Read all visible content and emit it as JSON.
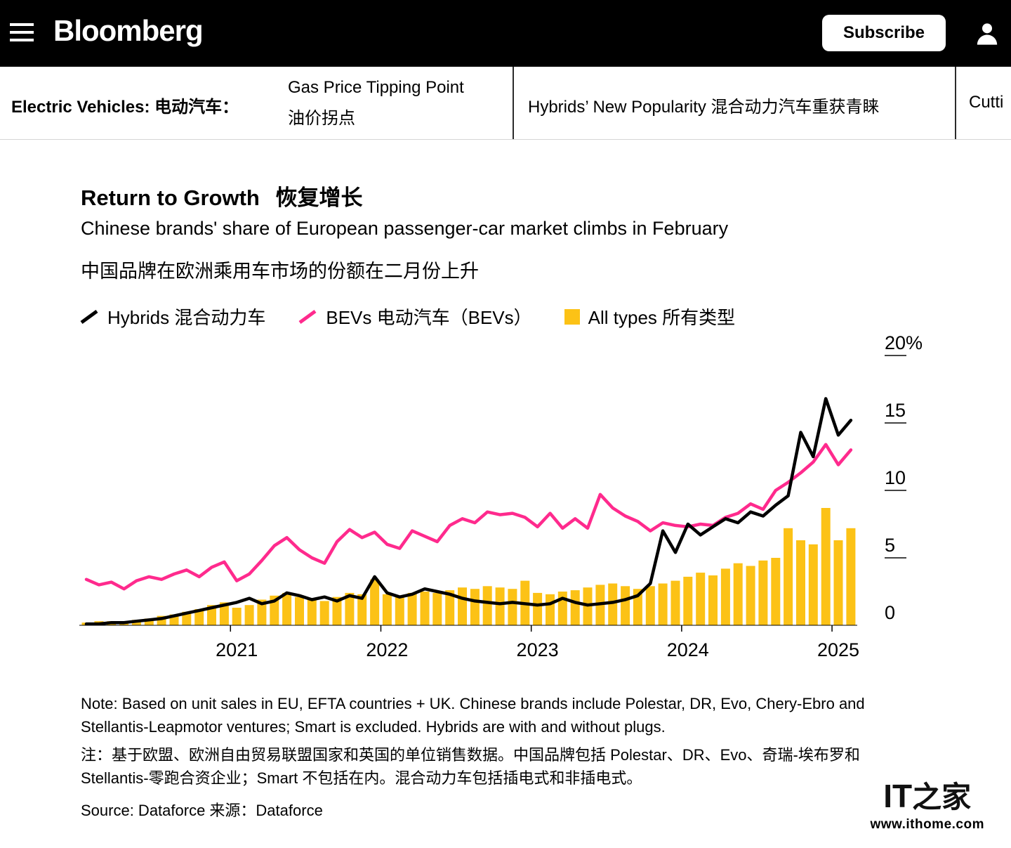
{
  "header": {
    "brand": "Bloomberg",
    "subscribe_label": "Subscribe"
  },
  "nav": {
    "section_en": "Electric Vehicles:",
    "section_zh": "电动汽车：",
    "items": [
      {
        "en": "Gas Price Tipping Point",
        "zh": "油价拐点"
      },
      {
        "en": "Hybrids’ New Popularity",
        "zh": "混合动力汽车重获青睐"
      },
      {
        "en": "Cutti",
        "zh": ""
      }
    ]
  },
  "article": {
    "title_en": "Return to Growth",
    "title_zh": "恢复增长",
    "subtitle_en": "Chinese brands' share of European passenger-car market climbs in February",
    "subtitle_zh": "中国品牌在欧洲乘用车市场的份额在二月份上升",
    "note_en": "Note: Based on unit sales in EU, EFTA countries + UK. Chinese brands include Polestar, DR, Evo, Chery-Ebro and Stellantis-Leapmotor ventures; Smart is excluded. Hybrids are with and without plugs.",
    "note_zh": "注：基于欧盟、欧洲自由贸易联盟国家和英国的单位销售数据。中国品牌包括 Polestar、DR、Evo、奇瑞-埃布罗和 Stellantis-零跑合资企业；Smart 不包括在内。混合动力车包括插电式和非插电式。",
    "source": "Source: Dataforce  来源：Dataforce"
  },
  "watermark": {
    "logo_it": "IT",
    "logo_zh": "之家",
    "url": "www.ithome.com"
  },
  "chart_data": {
    "type": "combo",
    "title": "Return to Growth 恢复增长",
    "subtitle": "Chinese brands' share of European passenger-car market climbs in February 中国品牌在欧洲乘用车市场的份额在二月份上升",
    "unit": "% share of European passenger-car market",
    "x_start": "2020-01",
    "x_end": "2025-02",
    "x_frequency": "monthly",
    "x_tick_labels": [
      "2021",
      "2022",
      "2023",
      "2024",
      "2025"
    ],
    "ylim": [
      0,
      20
    ],
    "y_ticks": [
      0,
      5,
      10,
      15,
      20
    ],
    "y_tick_labels": [
      "0",
      "5",
      "10",
      "15",
      "20%"
    ],
    "grid": false,
    "legend_position": "top-left",
    "series": [
      {
        "name": "Hybrids 混合动力车",
        "type": "line",
        "color": "#000000",
        "values": [
          0.1,
          0.1,
          0.2,
          0.2,
          0.3,
          0.4,
          0.5,
          0.7,
          0.9,
          1.1,
          1.3,
          1.5,
          1.7,
          2.0,
          1.6,
          1.8,
          2.4,
          2.2,
          1.9,
          2.1,
          1.8,
          2.2,
          2.0,
          3.6,
          2.4,
          2.1,
          2.3,
          2.7,
          2.5,
          2.3,
          2.0,
          1.8,
          1.7,
          1.6,
          1.7,
          1.6,
          1.5,
          1.6,
          2.0,
          1.7,
          1.5,
          1.6,
          1.7,
          1.9,
          2.2,
          3.1,
          7.0,
          5.4,
          7.5,
          6.7,
          7.3,
          7.9,
          7.6,
          8.4,
          8.1,
          8.9,
          9.6,
          14.3,
          12.5,
          16.8,
          14.1,
          15.2
        ]
      },
      {
        "name": "BEVs 电动汽车（BEVs）",
        "type": "line",
        "color": "#ff2a8d",
        "values": [
          3.4,
          3.0,
          3.2,
          2.7,
          3.3,
          3.6,
          3.4,
          3.8,
          4.1,
          3.6,
          4.3,
          4.7,
          3.3,
          3.8,
          4.8,
          5.9,
          6.5,
          5.6,
          5.0,
          4.6,
          6.2,
          7.1,
          6.5,
          6.9,
          6.0,
          5.7,
          7.0,
          6.6,
          6.2,
          7.4,
          7.9,
          7.6,
          8.4,
          8.2,
          8.3,
          8.0,
          7.3,
          8.3,
          7.2,
          7.9,
          7.2,
          9.7,
          8.7,
          8.1,
          7.7,
          7.0,
          7.6,
          7.4,
          7.3,
          7.5,
          7.4,
          8.0,
          8.3,
          9.0,
          8.6,
          10.0,
          10.6,
          11.3,
          12.1,
          13.4,
          11.9,
          13.0
        ]
      },
      {
        "name": "All types 所有类型",
        "type": "bar",
        "color": "#fcc216",
        "values": [
          0.2,
          0.3,
          0.3,
          0.3,
          0.4,
          0.5,
          0.7,
          0.8,
          1.0,
          1.2,
          1.5,
          1.7,
          1.3,
          1.5,
          1.9,
          2.2,
          2.4,
          2.1,
          1.9,
          1.8,
          2.1,
          2.4,
          2.3,
          3.4,
          2.3,
          2.1,
          2.4,
          2.5,
          2.4,
          2.6,
          2.8,
          2.7,
          2.9,
          2.8,
          2.7,
          3.3,
          2.4,
          2.3,
          2.5,
          2.6,
          2.8,
          3.0,
          3.1,
          2.9,
          2.7,
          2.9,
          3.1,
          3.3,
          3.6,
          3.9,
          3.7,
          4.2,
          4.6,
          4.4,
          4.8,
          5.0,
          7.2,
          6.3,
          6.0,
          8.7,
          6.3,
          7.2
        ]
      }
    ]
  }
}
